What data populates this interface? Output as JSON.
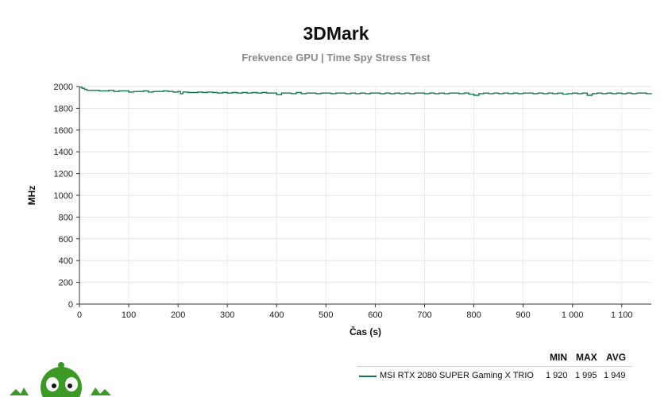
{
  "header": {
    "title": "3DMark",
    "subtitle": "Frekvence GPU | Time Spy Stress Test"
  },
  "legend": {
    "headers": {
      "min": "MIN",
      "max": "MAX",
      "avg": "AVG"
    },
    "rows": [
      {
        "name": "MSI RTX 2080 SUPER Gaming X TRIO",
        "min": "1 920",
        "max": "1 995",
        "avg": "1 949",
        "color": "#0e7a4a"
      }
    ]
  },
  "chart_data": {
    "type": "line",
    "title": "3DMark",
    "subtitle": "Frekvence GPU | Time Spy Stress Test",
    "xlabel": "Čas (s)",
    "ylabel": "MHz",
    "xlim": [
      0,
      1160
    ],
    "ylim": [
      0,
      2000
    ],
    "x_ticks": [
      0,
      100,
      200,
      300,
      400,
      500,
      600,
      700,
      800,
      900,
      1000,
      1100
    ],
    "x_tick_labels": [
      "0",
      "100",
      "200",
      "300",
      "400",
      "500",
      "600",
      "700",
      "800",
      "900",
      "1 000",
      "1 100"
    ],
    "y_ticks": [
      0,
      200,
      400,
      600,
      800,
      1000,
      1200,
      1400,
      1600,
      1800,
      2000
    ],
    "y_tick_labels": [
      "0",
      "200",
      "400",
      "600",
      "800",
      "1000",
      "1200",
      "1400",
      "1600",
      "1800",
      "2000"
    ],
    "grid": true,
    "series": [
      {
        "name": "MSI RTX 2080 SUPER Gaming X TRIO",
        "color": "#0e7a4a",
        "x": [
          0,
          5,
          10,
          15,
          20,
          30,
          40,
          50,
          60,
          70,
          80,
          90,
          100,
          110,
          120,
          130,
          140,
          150,
          160,
          170,
          180,
          190,
          200,
          205,
          210,
          220,
          230,
          240,
          250,
          260,
          270,
          280,
          290,
          300,
          310,
          320,
          330,
          340,
          350,
          360,
          370,
          380,
          390,
          400,
          410,
          420,
          430,
          440,
          450,
          460,
          470,
          480,
          490,
          500,
          510,
          520,
          530,
          540,
          550,
          560,
          570,
          580,
          590,
          600,
          610,
          620,
          630,
          640,
          650,
          660,
          670,
          680,
          690,
          700,
          710,
          720,
          730,
          740,
          750,
          760,
          770,
          780,
          790,
          800,
          810,
          820,
          830,
          840,
          850,
          860,
          870,
          880,
          890,
          900,
          910,
          920,
          930,
          940,
          950,
          960,
          970,
          980,
          990,
          1000,
          1010,
          1020,
          1030,
          1040,
          1050,
          1060,
          1070,
          1080,
          1090,
          1100,
          1110,
          1120,
          1130,
          1140,
          1150,
          1160
        ],
        "y": [
          1995,
          1985,
          1975,
          1965,
          1965,
          1965,
          1960,
          1960,
          1965,
          1955,
          1960,
          1960,
          1950,
          1955,
          1955,
          1960,
          1950,
          1955,
          1955,
          1960,
          1955,
          1950,
          1955,
          1935,
          1950,
          1945,
          1945,
          1950,
          1945,
          1950,
          1945,
          1940,
          1945,
          1940,
          1945,
          1940,
          1945,
          1940,
          1945,
          1940,
          1945,
          1940,
          1940,
          1925,
          1940,
          1940,
          1935,
          1945,
          1935,
          1940,
          1940,
          1935,
          1940,
          1940,
          1935,
          1940,
          1940,
          1935,
          1940,
          1935,
          1940,
          1935,
          1940,
          1940,
          1935,
          1940,
          1935,
          1940,
          1935,
          1940,
          1935,
          1940,
          1940,
          1935,
          1940,
          1935,
          1940,
          1935,
          1940,
          1940,
          1935,
          1940,
          1930,
          1920,
          1935,
          1940,
          1935,
          1940,
          1935,
          1940,
          1935,
          1940,
          1935,
          1940,
          1940,
          1935,
          1940,
          1935,
          1940,
          1935,
          1940,
          1930,
          1935,
          1940,
          1935,
          1940,
          1920,
          1935,
          1940,
          1935,
          1940,
          1935,
          1940,
          1935,
          1940,
          1935,
          1940,
          1940,
          1935,
          1940
        ]
      }
    ]
  }
}
